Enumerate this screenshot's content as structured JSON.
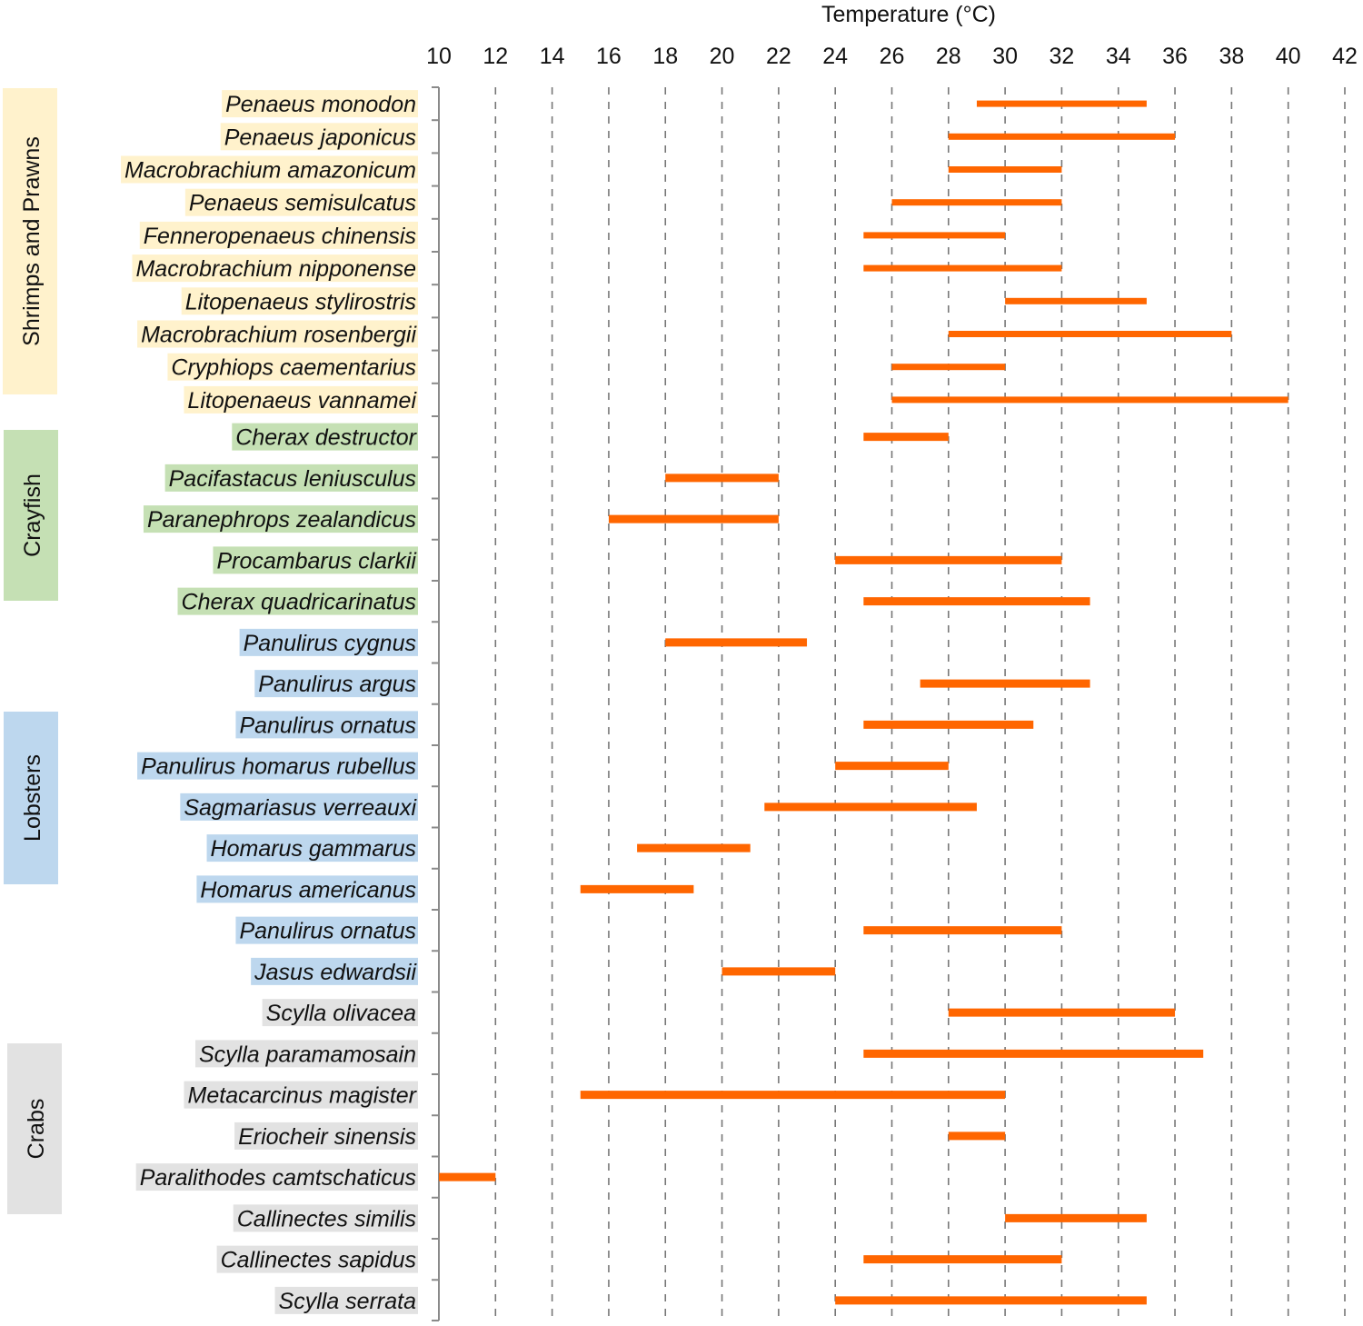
{
  "chart_data": {
    "type": "range-bar",
    "title": "",
    "xlabel": "Temperature (°C)",
    "ylabel": "",
    "xlim": [
      10,
      42
    ],
    "x_ticks": [
      10,
      12,
      14,
      16,
      18,
      20,
      22,
      24,
      26,
      28,
      30,
      32,
      34,
      36,
      38,
      40,
      42
    ],
    "grid": "vertical-dashed",
    "x_axis_position": "top",
    "bar_color": "#FF6600",
    "groups": [
      {
        "name": "Shrimps and Prawns",
        "color": "#FFF2CC",
        "species": [
          {
            "name": "Penaeus monodon",
            "min": 29,
            "max": 35
          },
          {
            "name": "Penaeus japonicus",
            "min": 28,
            "max": 36
          },
          {
            "name": "Macrobrachium amazonicum",
            "min": 28,
            "max": 32
          },
          {
            "name": "Penaeus semisulcatus",
            "min": 26,
            "max": 32
          },
          {
            "name": "Fenneropenaeus chinensis",
            "min": 25,
            "max": 30
          },
          {
            "name": "Macrobrachium nipponense",
            "min": 25,
            "max": 32
          },
          {
            "name": "Litopenaeus stylirostris",
            "min": 30,
            "max": 35
          },
          {
            "name": "Macrobrachium rosenbergii",
            "min": 28,
            "max": 38
          },
          {
            "name": "Cryphiops caementarius",
            "min": 26,
            "max": 30
          },
          {
            "name": "Litopenaeus vannamei",
            "min": 26,
            "max": 40
          }
        ]
      },
      {
        "name": "Crayfish",
        "color": "#C5E0B4",
        "species": [
          {
            "name": "Cherax destructor",
            "min": 25,
            "max": 28
          },
          {
            "name": "Pacifastacus leniusculus",
            "min": 18,
            "max": 22
          },
          {
            "name": "Paranephrops zealandicus",
            "min": 16,
            "max": 22
          },
          {
            "name": "Procambarus clarkii",
            "min": 24,
            "max": 32
          },
          {
            "name": "Cherax quadricarinatus",
            "min": 25,
            "max": 33
          }
        ]
      },
      {
        "name": "Lobsters",
        "color": "#BDD7EE",
        "species": [
          {
            "name": "Panulirus cygnus",
            "min": 18,
            "max": 23
          },
          {
            "name": "Panulirus argus",
            "min": 27,
            "max": 33
          },
          {
            "name": "Panulirus ornatus",
            "min": 25,
            "max": 31
          },
          {
            "name": "Panulirus homarus rubellus",
            "min": 24,
            "max": 28
          },
          {
            "name": "Sagmariasus verreauxi",
            "min": 21.5,
            "max": 29
          },
          {
            "name": "Homarus gammarus",
            "min": 17,
            "max": 21
          },
          {
            "name": "Homarus americanus",
            "min": 15,
            "max": 19
          },
          {
            "name": "Panulirus ornatus",
            "min": 25,
            "max": 32
          },
          {
            "name": "Jasus edwardsii",
            "min": 20,
            "max": 24
          }
        ]
      },
      {
        "name": "Crabs",
        "color": "#E2E2E2",
        "species": [
          {
            "name": "Scylla olivacea",
            "min": 28,
            "max": 36
          },
          {
            "name": "Scylla paramamosain",
            "min": 25,
            "max": 37
          },
          {
            "name": "Metacarcinus magister",
            "min": 15,
            "max": 30
          },
          {
            "name": "Eriocheir sinensis",
            "min": 28,
            "max": 30
          },
          {
            "name": "Paralithodes camtschaticus",
            "min": 10,
            "max": 12
          },
          {
            "name": "Callinectes similis",
            "min": 30,
            "max": 35
          },
          {
            "name": "Callinectes sapidus",
            "min": 25,
            "max": 32
          },
          {
            "name": "Scylla serrata",
            "min": 24,
            "max": 35
          }
        ]
      }
    ]
  }
}
